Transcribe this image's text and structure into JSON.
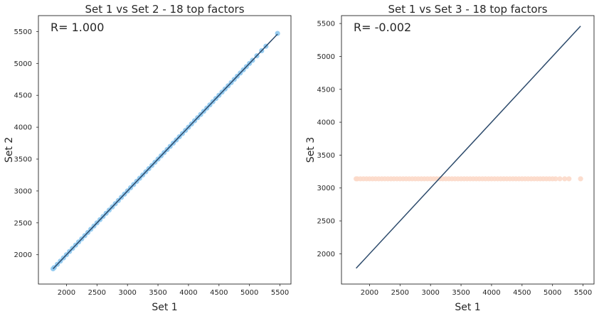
{
  "chart_data": [
    {
      "type": "scatter",
      "title": "Set 1 vs Set 2 - 18 top factors",
      "xlabel": "Set 1",
      "ylabel": "Set 2",
      "annotation": "R= 1.000",
      "xlim": [
        1540,
        5680
      ],
      "ylim": [
        1540,
        5750
      ],
      "xticks": [
        2000,
        2500,
        3000,
        3500,
        4000,
        4500,
        5000,
        5500
      ],
      "yticks": [
        2000,
        2500,
        3000,
        3500,
        4000,
        4500,
        5000,
        5500
      ],
      "grid": false,
      "point_color": "#8cc6ee",
      "line_color": "#2c4a6b",
      "line": {
        "x": [
          1780,
          5460
        ],
        "y": [
          1780,
          5460
        ]
      },
      "points": {
        "x": [
          1780,
          1800,
          1850,
          1900,
          1950,
          2000,
          2050,
          2100,
          2150,
          2200,
          2250,
          2300,
          2350,
          2400,
          2450,
          2500,
          2550,
          2600,
          2650,
          2700,
          2750,
          2800,
          2850,
          2900,
          2950,
          3000,
          3050,
          3100,
          3150,
          3200,
          3250,
          3300,
          3350,
          3400,
          3450,
          3500,
          3550,
          3600,
          3650,
          3700,
          3750,
          3800,
          3850,
          3900,
          3950,
          4000,
          4050,
          4100,
          4150,
          4200,
          4250,
          4300,
          4350,
          4400,
          4450,
          4500,
          4550,
          4600,
          4650,
          4700,
          4750,
          4800,
          4850,
          4900,
          4950,
          5000,
          5050,
          5120,
          5200,
          5270,
          5460
        ],
        "y": [
          1780,
          1800,
          1850,
          1900,
          1950,
          2000,
          2050,
          2100,
          2150,
          2200,
          2250,
          2300,
          2350,
          2400,
          2450,
          2500,
          2550,
          2600,
          2650,
          2700,
          2750,
          2800,
          2850,
          2900,
          2950,
          3000,
          3050,
          3100,
          3150,
          3200,
          3250,
          3300,
          3350,
          3400,
          3450,
          3500,
          3550,
          3600,
          3650,
          3700,
          3750,
          3800,
          3850,
          3900,
          3950,
          4000,
          4050,
          4100,
          4150,
          4200,
          4250,
          4300,
          4350,
          4400,
          4450,
          4500,
          4550,
          4600,
          4650,
          4700,
          4750,
          4800,
          4850,
          4900,
          4950,
          5000,
          5050,
          5120,
          5200,
          5270,
          5470
        ]
      }
    },
    {
      "type": "scatter",
      "title": "Set 1 vs Set 3 - 18 top factors",
      "xlabel": "Set 1",
      "ylabel": "Set 3",
      "annotation": "R= -0.002",
      "xlim": [
        1540,
        5680
      ],
      "ylim": [
        1540,
        5620
      ],
      "xticks": [
        2000,
        2500,
        3000,
        3500,
        4000,
        4500,
        5000,
        5500
      ],
      "yticks": [
        2000,
        2500,
        3000,
        3500,
        4000,
        4500,
        5000,
        5500
      ],
      "grid": false,
      "point_color": "#fcd9c9",
      "line_color": "#2c4a6b",
      "line": {
        "x": [
          1780,
          5460
        ],
        "y": [
          1780,
          5460
        ]
      },
      "points": {
        "x": [
          1780,
          1800,
          1850,
          1900,
          1950,
          2000,
          2050,
          2100,
          2150,
          2200,
          2250,
          2300,
          2350,
          2400,
          2450,
          2500,
          2550,
          2600,
          2650,
          2700,
          2750,
          2800,
          2850,
          2900,
          2950,
          3000,
          3050,
          3100,
          3150,
          3200,
          3250,
          3300,
          3350,
          3400,
          3450,
          3500,
          3550,
          3600,
          3650,
          3700,
          3750,
          3800,
          3850,
          3900,
          3950,
          4000,
          4050,
          4100,
          4150,
          4200,
          4250,
          4300,
          4350,
          4400,
          4450,
          4500,
          4550,
          4600,
          4650,
          4700,
          4750,
          4800,
          4850,
          4900,
          4950,
          5000,
          5050,
          5120,
          5200,
          5270,
          5460
        ],
        "y": [
          3140,
          3140,
          3140,
          3140,
          3140,
          3140,
          3140,
          3140,
          3140,
          3140,
          3140,
          3140,
          3140,
          3140,
          3140,
          3140,
          3140,
          3140,
          3140,
          3140,
          3140,
          3140,
          3140,
          3140,
          3140,
          3140,
          3140,
          3140,
          3140,
          3140,
          3140,
          3140,
          3140,
          3140,
          3140,
          3140,
          3140,
          3140,
          3140,
          3140,
          3140,
          3140,
          3140,
          3140,
          3140,
          3140,
          3140,
          3140,
          3140,
          3140,
          3140,
          3140,
          3140,
          3140,
          3140,
          3140,
          3140,
          3140,
          3140,
          3140,
          3140,
          3140,
          3140,
          3140,
          3140,
          3140,
          3140,
          3140,
          3140,
          3140,
          3140
        ]
      }
    }
  ]
}
